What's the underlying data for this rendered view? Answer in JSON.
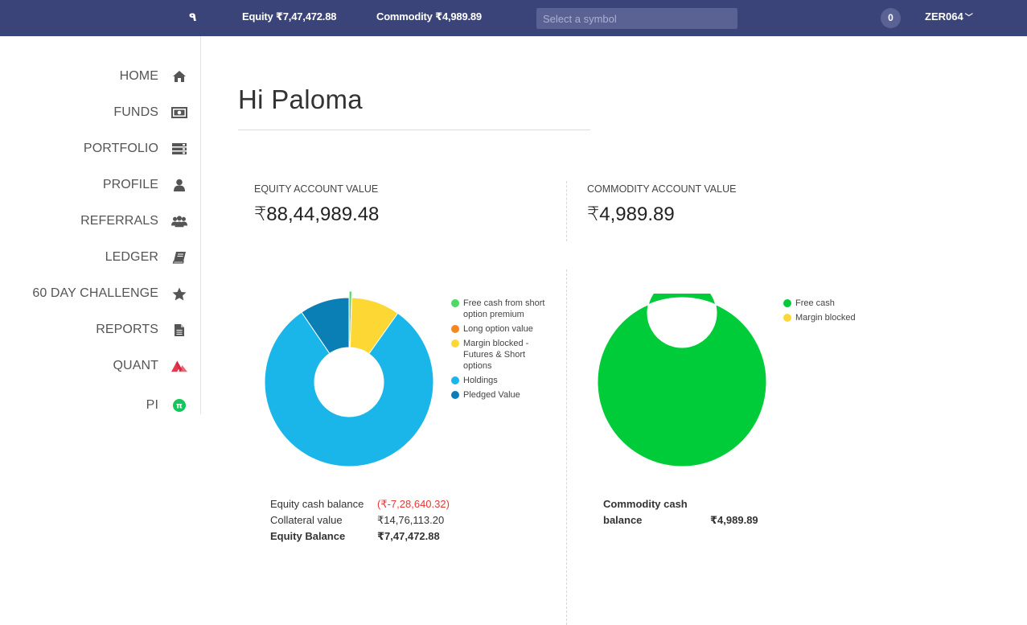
{
  "topbar": {
    "logo": "٩",
    "equity": "Equity ₹7,47,472.88",
    "commodity": "Commodity ₹4,989.89",
    "search_placeholder": "Select a symbol",
    "notifications": "0",
    "user_id": "ZER064"
  },
  "sidebar": {
    "items": [
      {
        "label": "HOME",
        "icon": "home-icon"
      },
      {
        "label": "FUNDS",
        "icon": "money-icon"
      },
      {
        "label": "PORTFOLIO",
        "icon": "portfolio-icon"
      },
      {
        "label": "PROFILE",
        "icon": "user-icon"
      },
      {
        "label": "REFERRALS",
        "icon": "users-icon"
      },
      {
        "label": "LEDGER",
        "icon": "book-icon"
      },
      {
        "label": "60 DAY CHALLENGE",
        "icon": "star-icon"
      },
      {
        "label": "REPORTS",
        "icon": "document-icon"
      },
      {
        "label": "QUANT",
        "icon": "quant-icon"
      },
      {
        "label": "PI",
        "icon": "pi-icon"
      }
    ]
  },
  "main": {
    "greeting": "Hi Paloma",
    "equity_account": {
      "label": "EQUITY ACCOUNT VALUE",
      "value": "₹88,44,989.48"
    },
    "commodity_account": {
      "label": "COMMODITY ACCOUNT VALUE",
      "value": "₹4,989.89"
    },
    "equity_legend": [
      {
        "label": "Free cash from short option premium",
        "color": "#4cd964"
      },
      {
        "label": "Long option value",
        "color": "#f5871f"
      },
      {
        "label": "Margin blocked - Futures & Short options",
        "color": "#fdd835"
      },
      {
        "label": "Holdings",
        "color": "#1ab6ea"
      },
      {
        "label": "Pledged Value",
        "color": "#0a7fb5"
      }
    ],
    "commodity_legend": [
      {
        "label": "Free cash",
        "color": "#00cc3a"
      },
      {
        "label": "Margin blocked",
        "color": "#fdd835"
      }
    ],
    "equity_balances": {
      "cash_label": "Equity cash balance",
      "cash_value": "(₹-7,28,640.32)",
      "collateral_label": "Collateral value",
      "collateral_value": "₹14,76,113.20",
      "total_label": "Equity Balance",
      "total_value": "₹7,47,472.88"
    },
    "commodity_balances": {
      "cash_label_line1": "Commodity cash",
      "cash_label_line2": "balance",
      "cash_value": "₹4,989.89"
    }
  },
  "chart_data": [
    {
      "type": "pie",
      "variant": "donut",
      "series": [
        {
          "name": "Free cash from short option premium",
          "value": 0.5,
          "color": "#4cd964"
        },
        {
          "name": "Margin blocked - Futures & Short options",
          "value": 9.3,
          "color": "#fdd835"
        },
        {
          "name": "Holdings",
          "value": 80.7,
          "color": "#1ab6ea"
        },
        {
          "name": "Pledged Value",
          "value": 9.5,
          "color": "#0a7fb5"
        }
      ],
      "legend": "right"
    },
    {
      "type": "pie",
      "variant": "donut",
      "series": [
        {
          "name": "Free cash",
          "value": 100,
          "color": "#00cc3a"
        }
      ],
      "legend": "right"
    }
  ]
}
